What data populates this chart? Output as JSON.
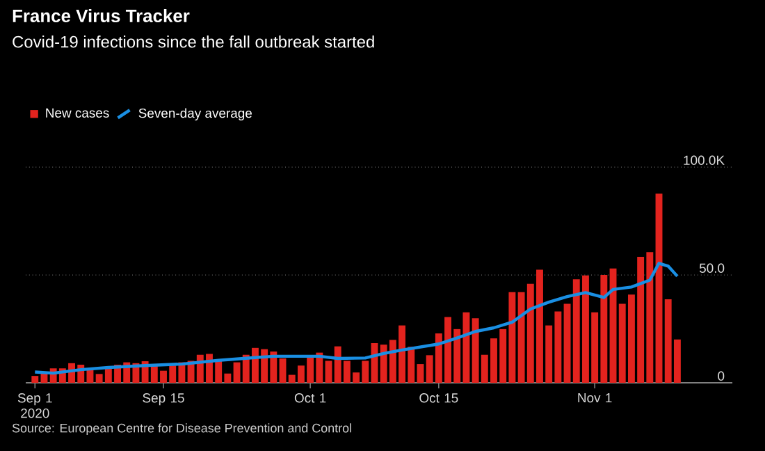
{
  "chart_data": {
    "type": "bar",
    "title": "France Virus Tracker",
    "subtitle": "Covid-19 infections since the fall outbreak started",
    "x": [
      "2020-09-01",
      "2020-09-02",
      "2020-09-03",
      "2020-09-04",
      "2020-09-05",
      "2020-09-06",
      "2020-09-07",
      "2020-09-08",
      "2020-09-09",
      "2020-09-10",
      "2020-09-11",
      "2020-09-12",
      "2020-09-13",
      "2020-09-14",
      "2020-09-15",
      "2020-09-16",
      "2020-09-17",
      "2020-09-18",
      "2020-09-19",
      "2020-09-20",
      "2020-09-21",
      "2020-09-22",
      "2020-09-23",
      "2020-09-24",
      "2020-09-25",
      "2020-09-26",
      "2020-09-27",
      "2020-09-28",
      "2020-09-29",
      "2020-09-30",
      "2020-10-01",
      "2020-10-02",
      "2020-10-03",
      "2020-10-04",
      "2020-10-05",
      "2020-10-06",
      "2020-10-07",
      "2020-10-08",
      "2020-10-09",
      "2020-10-10",
      "2020-10-11",
      "2020-10-12",
      "2020-10-13",
      "2020-10-14",
      "2020-10-15",
      "2020-10-16",
      "2020-10-17",
      "2020-10-18",
      "2020-10-19",
      "2020-10-20",
      "2020-10-21",
      "2020-10-22",
      "2020-10-23",
      "2020-10-24",
      "2020-10-25",
      "2020-10-26",
      "2020-10-27",
      "2020-10-28",
      "2020-10-29",
      "2020-10-30",
      "2020-10-31",
      "2020-11-01",
      "2020-11-02",
      "2020-11-03",
      "2020-11-04",
      "2020-11-05",
      "2020-11-06",
      "2020-11-07",
      "2020-11-08",
      "2020-11-09",
      "2020-11-10"
    ],
    "series": [
      {
        "name": "New cases",
        "type": "bar",
        "color": "#e3231e",
        "values": [
          3.2,
          4.5,
          6.7,
          6.7,
          9.1,
          8.4,
          6.1,
          4.1,
          6.7,
          8.4,
          9.5,
          9.1,
          10,
          8,
          5.6,
          8,
          9.5,
          10.2,
          13,
          13.4,
          10.2,
          4.3,
          9.5,
          13,
          16.2,
          15.6,
          14.5,
          11.3,
          3.7,
          8,
          12.3,
          14,
          10.2,
          16.9,
          10.2,
          4.8,
          10.2,
          18.4,
          17.7,
          19.9,
          26.6,
          16.7,
          8.7,
          12.8,
          22.9,
          30.5,
          24.9,
          32.7,
          29.9,
          13,
          20.6,
          24.9,
          42,
          42,
          45.9,
          52.4,
          26.6,
          33.1,
          36.6,
          48,
          49.8,
          32.7,
          50,
          53,
          36.6,
          40.9,
          58.4,
          60.6,
          87.7,
          38.7,
          20.1
        ]
      },
      {
        "name": "Seven-day average",
        "type": "line",
        "color": "#1a8fe3",
        "x": [
          "2020-09-01",
          "2020-09-03",
          "2020-09-06",
          "2020-09-09",
          "2020-09-13",
          "2020-09-17",
          "2020-09-21",
          "2020-09-25",
          "2020-09-27",
          "2020-10-02",
          "2020-10-04",
          "2020-10-07",
          "2020-10-09",
          "2020-10-11",
          "2020-10-15",
          "2020-10-17",
          "2020-10-19",
          "2020-10-21",
          "2020-10-23",
          "2020-10-25",
          "2020-10-27",
          "2020-10-29",
          "2020-10-31",
          "2020-11-02",
          "2020-11-03",
          "2020-11-05",
          "2020-11-07",
          "2020-11-08",
          "2020-11-09",
          "2020-11-10"
        ],
        "values": [
          5.0,
          4.5,
          6.1,
          7.1,
          8,
          8.7,
          10.4,
          11.7,
          12.3,
          12.3,
          11.3,
          11.5,
          13.6,
          15.2,
          18,
          20.8,
          23.8,
          25.5,
          28.1,
          34.2,
          37.4,
          40,
          41.8,
          39.6,
          43.3,
          44.4,
          47.6,
          55.4,
          54.1,
          49.4
        ]
      }
    ],
    "xlim": [
      "2020-08-31",
      "2020-11-16"
    ],
    "xticks": [
      {
        "value": "2020-09-01",
        "label": "Sep 1 2020"
      },
      {
        "value": "2020-09-15",
        "label": "Sep 15"
      },
      {
        "value": "2020-10-01",
        "label": "Oct 1"
      },
      {
        "value": "2020-10-15",
        "label": "Oct 15"
      },
      {
        "value": "2020-11-01",
        "label": "Nov 1"
      }
    ],
    "ylim": [
      0,
      100
    ],
    "yticks": [
      0,
      {
        "value": 50,
        "label": "50.0"
      },
      {
        "value": 100,
        "label": "100.0K"
      }
    ],
    "grid": "y",
    "legend": "top left",
    "annotations": [
      "Source: European Centre for Disease Prevention and Control"
    ]
  }
}
